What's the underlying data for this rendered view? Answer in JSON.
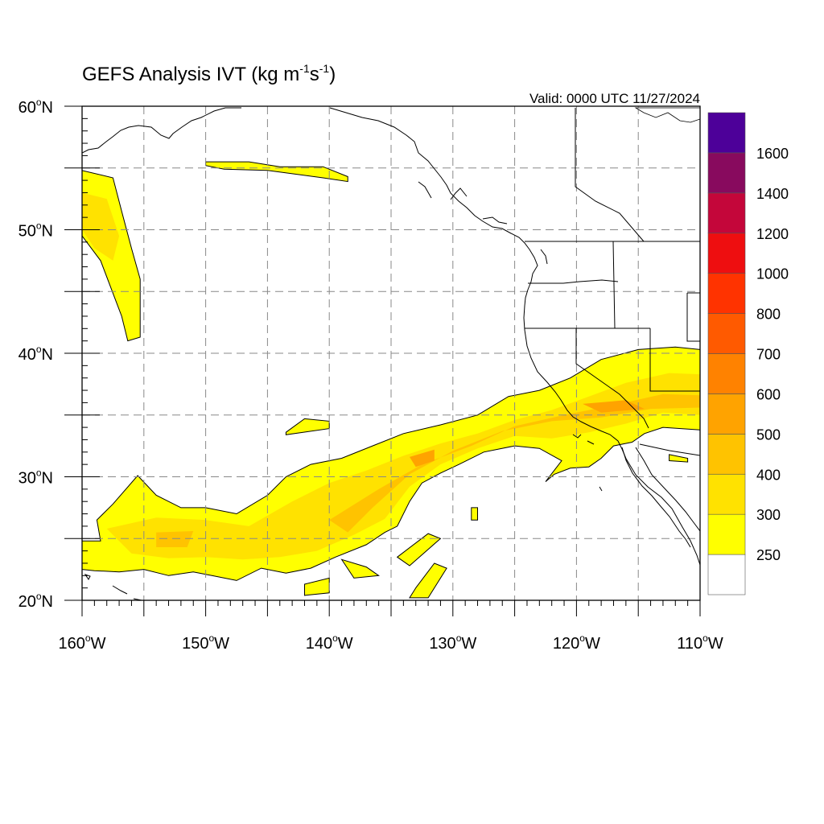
{
  "title": {
    "main": "GEFS Analysis IVT (kg m",
    "exp1": "-1",
    "mid": "s",
    "exp2": "-1",
    "close": ")"
  },
  "valid": "Valid: 0000 UTC 11/27/2024",
  "axes": {
    "lat_labels": [
      "60",
      "50",
      "40",
      "30",
      "20"
    ],
    "lat_suffix": "N",
    "lon_labels": [
      "160",
      "150",
      "140",
      "130",
      "120",
      "110"
    ],
    "lon_suffix": "W",
    "degree": "o"
  },
  "extent": {
    "lon_min": -160,
    "lon_max": -110,
    "lat_min": 20,
    "lat_max": 60
  },
  "colorbar": {
    "labels": [
      "1600",
      "1400",
      "1200",
      "1000",
      "800",
      "700",
      "600",
      "500",
      "400",
      "300",
      "250"
    ],
    "colors": [
      "#ffffff",
      "#ffff00",
      "#ffe200",
      "#ffc300",
      "#ffa300",
      "#ff8200",
      "#ff5a00",
      "#ff3300",
      "#ee0e10",
      "#c4063a",
      "#880a5e",
      "#4d0099"
    ]
  },
  "chart_data": {
    "type": "heatmap",
    "title": "GEFS Analysis IVT (kg m-1s-1)",
    "valid_time": "0000 UTC 11/27/2024",
    "xlabel": "",
    "ylabel": "",
    "xlim": [
      -160,
      -110
    ],
    "ylim": [
      20,
      60
    ],
    "grid": true,
    "levels": [
      250,
      300,
      400,
      500,
      600,
      700,
      800,
      1000,
      1200,
      1400,
      1600
    ],
    "regions": [
      {
        "level": 250,
        "polygon": [
          [
            -160,
            54.8
          ],
          [
            -157.5,
            54.2
          ],
          [
            -156.8,
            51.5
          ],
          [
            -156,
            48.5
          ],
          [
            -155.3,
            46
          ],
          [
            -155.3,
            41.3
          ],
          [
            -156.3,
            41
          ],
          [
            -156.8,
            43
          ],
          [
            -158.5,
            47.5
          ],
          [
            -160,
            49.5
          ]
        ]
      },
      {
        "level": 300,
        "polygon": [
          [
            -160,
            53
          ],
          [
            -158,
            52.5
          ],
          [
            -157,
            49.5
          ],
          [
            -157.5,
            47.5
          ],
          [
            -159,
            48.5
          ],
          [
            -160,
            50
          ]
        ]
      },
      {
        "level": 250,
        "polygon": [
          [
            -160,
            24.8
          ],
          [
            -158.5,
            24.8
          ],
          [
            -158.8,
            26.5
          ],
          [
            -157.5,
            27.8
          ],
          [
            -155.5,
            30.1
          ],
          [
            -154,
            28.5
          ],
          [
            -152,
            27.5
          ],
          [
            -150,
            27.5
          ],
          [
            -147.5,
            27
          ],
          [
            -145,
            28.5
          ],
          [
            -143.5,
            30
          ],
          [
            -141.5,
            31
          ],
          [
            -139,
            31.5
          ],
          [
            -136.5,
            32.5
          ],
          [
            -134,
            33.5
          ],
          [
            -131,
            34.2
          ],
          [
            -128,
            35
          ],
          [
            -125.5,
            36.5
          ],
          [
            -123,
            37
          ],
          [
            -120.5,
            38
          ],
          [
            -118,
            39.5
          ],
          [
            -115,
            40.3
          ],
          [
            -112,
            40.5
          ],
          [
            -110,
            40.3
          ],
          [
            -110,
            33.8
          ],
          [
            -113,
            34
          ],
          [
            -114.5,
            33.5
          ],
          [
            -115.5,
            32.8
          ],
          [
            -117,
            32.5
          ],
          [
            -118,
            31.5
          ],
          [
            -119,
            30.8
          ],
          [
            -120.5,
            30.7
          ],
          [
            -121.8,
            30.2
          ],
          [
            -122.5,
            29.6
          ],
          [
            -121.2,
            31.3
          ],
          [
            -123,
            32.3
          ],
          [
            -125,
            32.5
          ],
          [
            -127.5,
            32
          ],
          [
            -129.5,
            31
          ],
          [
            -131,
            30.3
          ],
          [
            -132.5,
            29.5
          ],
          [
            -133.5,
            28
          ],
          [
            -134.5,
            26
          ],
          [
            -135.5,
            25.5
          ],
          [
            -137,
            24.5
          ],
          [
            -139.5,
            23.5
          ],
          [
            -141.5,
            22.6
          ],
          [
            -143.5,
            22.2
          ],
          [
            -145.5,
            22.6
          ],
          [
            -147.5,
            21.6
          ],
          [
            -149.5,
            22
          ],
          [
            -151,
            22.3
          ],
          [
            -153,
            22
          ],
          [
            -155,
            22.5
          ],
          [
            -157,
            22.3
          ],
          [
            -159,
            22.4
          ],
          [
            -160,
            22.5
          ]
        ]
      },
      {
        "level": 300,
        "polygon": [
          [
            -158,
            25.8
          ],
          [
            -154,
            26.7
          ],
          [
            -150,
            26.5
          ],
          [
            -146.5,
            26
          ],
          [
            -143,
            28
          ],
          [
            -140,
            29.5
          ],
          [
            -137,
            30.5
          ],
          [
            -134,
            31.7
          ],
          [
            -131,
            32.7
          ],
          [
            -128,
            33.5
          ],
          [
            -125,
            34.6
          ],
          [
            -122,
            35.4
          ],
          [
            -119,
            36.5
          ],
          [
            -116,
            37.6
          ],
          [
            -112.5,
            38.4
          ],
          [
            -110,
            38.3
          ],
          [
            -110,
            35
          ],
          [
            -113,
            35.2
          ],
          [
            -116,
            34.3
          ],
          [
            -119,
            33.6
          ],
          [
            -122,
            33.1
          ],
          [
            -125,
            33.3
          ],
          [
            -128,
            32.3
          ],
          [
            -131,
            31
          ],
          [
            -133.5,
            29.2
          ],
          [
            -135.5,
            26.6
          ],
          [
            -138,
            25.3
          ],
          [
            -141,
            24
          ],
          [
            -144,
            23.5
          ],
          [
            -147,
            23.3
          ],
          [
            -150,
            23.5
          ],
          [
            -153,
            23.4
          ],
          [
            -156,
            23.8
          ]
        ]
      },
      {
        "level": 400,
        "polygon": [
          [
            -154,
            25.5
          ],
          [
            -151,
            25.6
          ],
          [
            -151.5,
            24.3
          ],
          [
            -154,
            24.3
          ]
        ]
      },
      {
        "level": 400,
        "polygon": [
          [
            -140,
            26.5
          ],
          [
            -136,
            29
          ],
          [
            -132.5,
            31
          ],
          [
            -128.5,
            32.5
          ],
          [
            -125,
            34.1
          ],
          [
            -121,
            35
          ],
          [
            -117,
            35.8
          ],
          [
            -113,
            36.7
          ],
          [
            -110,
            36.6
          ],
          [
            -110,
            35.6
          ],
          [
            -114,
            35.5
          ],
          [
            -118,
            34.8
          ],
          [
            -122,
            34.5
          ],
          [
            -126,
            33.7
          ],
          [
            -130,
            32.1
          ],
          [
            -133.5,
            30.2
          ],
          [
            -136.5,
            27.5
          ],
          [
            -138.5,
            25.5
          ]
        ]
      },
      {
        "level": 500,
        "polygon": [
          [
            -133.5,
            31.6
          ],
          [
            -131.5,
            32.2
          ],
          [
            -131.5,
            31.3
          ],
          [
            -133,
            30.8
          ]
        ]
      },
      {
        "level": 500,
        "polygon": [
          [
            -119.5,
            35.9
          ],
          [
            -116,
            36.2
          ],
          [
            -114.5,
            35.5
          ],
          [
            -118,
            35.2
          ]
        ]
      },
      {
        "level": 250,
        "polygon": [
          [
            -150,
            55.5
          ],
          [
            -146.5,
            55.5
          ],
          [
            -144,
            55.1
          ],
          [
            -140.5,
            55.1
          ],
          [
            -138.5,
            54.3
          ],
          [
            -138.5,
            53.9
          ],
          [
            -140.5,
            54.2
          ],
          [
            -145,
            54.8
          ],
          [
            -148.5,
            54.9
          ],
          [
            -150,
            55.2
          ]
        ]
      },
      {
        "level": 250,
        "polygon": [
          [
            -143.5,
            33.6
          ],
          [
            -142,
            34.7
          ],
          [
            -140,
            34.5
          ],
          [
            -140,
            33.9
          ],
          [
            -143.5,
            33.4
          ]
        ]
      },
      {
        "level": 250,
        "polygon": [
          [
            -139,
            23.3
          ],
          [
            -137,
            22.7
          ],
          [
            -136,
            22
          ],
          [
            -138,
            21.8
          ]
        ]
      },
      {
        "level": 250,
        "polygon": [
          [
            -142,
            21.3
          ],
          [
            -140,
            21.8
          ],
          [
            -140,
            20.6
          ],
          [
            -142,
            20.4
          ]
        ]
      },
      {
        "level": 250,
        "polygon": [
          [
            -134.5,
            23.5
          ],
          [
            -132,
            25.4
          ],
          [
            -131,
            25
          ],
          [
            -133.5,
            22.8
          ]
        ]
      },
      {
        "level": 250,
        "polygon": [
          [
            -133,
            21
          ],
          [
            -131.5,
            23
          ],
          [
            -130.5,
            22.6
          ],
          [
            -132,
            20.2
          ],
          [
            -133.5,
            20.2
          ]
        ]
      },
      {
        "level": 250,
        "polygon": [
          [
            -128.5,
            27.5
          ],
          [
            -128,
            27.5
          ],
          [
            -128,
            26.5
          ],
          [
            -128.5,
            26.5
          ]
        ]
      },
      {
        "level": 250,
        "polygon": [
          [
            -112.5,
            31.8
          ],
          [
            -111,
            31.5
          ],
          [
            -111,
            31.2
          ],
          [
            -112.5,
            31.3
          ]
        ]
      }
    ]
  }
}
